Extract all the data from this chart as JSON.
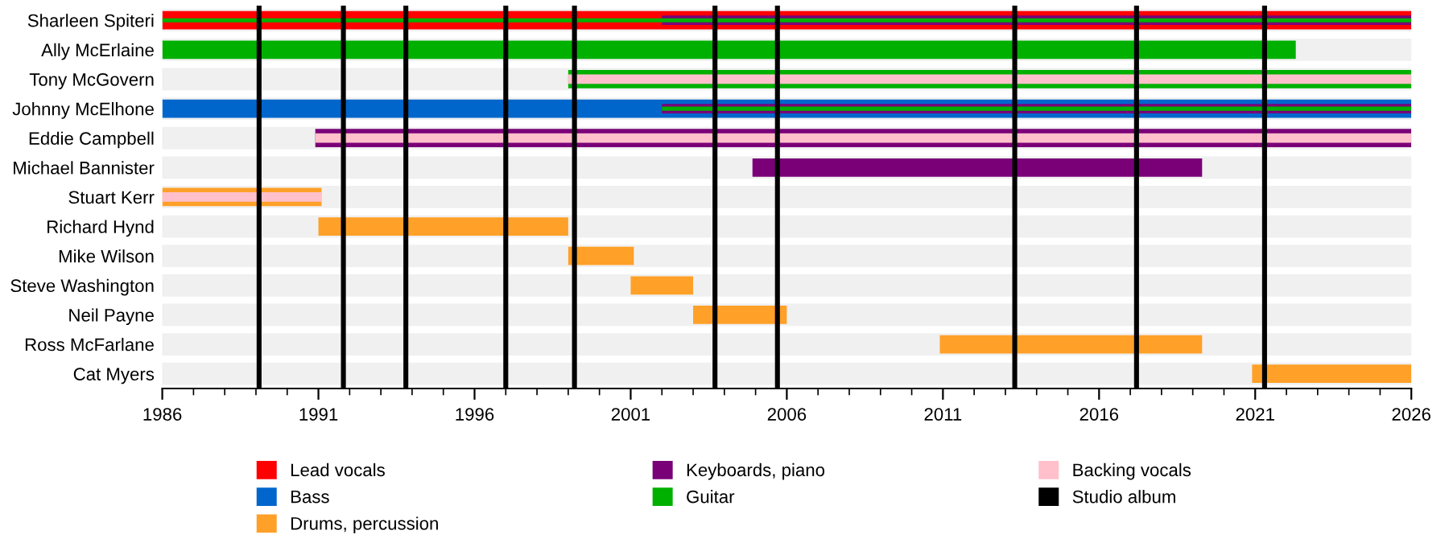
{
  "chart_data": {
    "type": "bar",
    "orientation": "horizontal",
    "categories": [
      "Sharleen Spiteri",
      "Ally McErlaine",
      "Tony McGovern",
      "Johnny McElhone",
      "Eddie Campbell",
      "Michael Bannister",
      "Stuart Kerr",
      "Richard Hynd",
      "Mike Wilson",
      "Steve Washington",
      "Neil Payne",
      "Ross McFarlane",
      "Cat Myers"
    ],
    "series": [
      {
        "name": "Lead vocals",
        "color": "#ff0000",
        "base": [
          1986,
          null,
          null,
          null,
          null,
          null,
          null,
          null,
          null,
          null,
          null,
          null,
          null
        ],
        "values": [
          40,
          null,
          null,
          null,
          null,
          null,
          null,
          null,
          null,
          null,
          null,
          null,
          null
        ]
      },
      {
        "name": "Bass",
        "color": "#0066cc",
        "base": [
          null,
          null,
          null,
          1986,
          null,
          null,
          null,
          null,
          null,
          null,
          null,
          null,
          null
        ],
        "values": [
          null,
          null,
          null,
          40,
          null,
          null,
          null,
          null,
          null,
          null,
          null,
          null,
          null
        ]
      },
      {
        "name": "Drums, percussion",
        "color": "#ffa028",
        "base": [
          null,
          null,
          null,
          null,
          null,
          null,
          1986,
          1991,
          1999,
          2001,
          2003,
          2010.9,
          2020.9
        ],
        "values": [
          null,
          null,
          null,
          null,
          null,
          null,
          5.1,
          8,
          2.1,
          2,
          3,
          8.4,
          5.1
        ]
      },
      {
        "name": "Keyboards, piano",
        "color": "#7a0078",
        "base": [
          2002,
          null,
          null,
          2002,
          1990.9,
          2004.9,
          null,
          null,
          null,
          null,
          null,
          null,
          null
        ],
        "values": [
          24,
          null,
          null,
          24,
          35.1,
          14.4,
          null,
          null,
          null,
          null,
          null,
          null,
          null
        ]
      },
      {
        "name": "Guitar",
        "color": "#00b000",
        "base": [
          1986,
          1986,
          1999,
          2002,
          null,
          null,
          null,
          null,
          null,
          null,
          null,
          null,
          null
        ],
        "values": [
          40,
          36.3,
          27,
          24,
          null,
          null,
          null,
          null,
          null,
          null,
          null,
          null,
          null
        ]
      },
      {
        "name": "Backing vocals",
        "color": "#ffc0cb",
        "base": [
          null,
          null,
          1999,
          null,
          1990.9,
          null,
          1986,
          null,
          null,
          null,
          null,
          null,
          null
        ],
        "values": [
          null,
          null,
          27,
          null,
          35.1,
          null,
          5.1,
          null,
          null,
          null,
          null,
          null,
          null
        ]
      }
    ],
    "ref_lines": [
      {
        "axis": "x",
        "value": 1989.1,
        "label": "Studio album",
        "color": "#000000"
      },
      {
        "axis": "x",
        "value": 1991.8,
        "color": "#000000"
      },
      {
        "axis": "x",
        "value": 1993.8,
        "color": "#000000"
      },
      {
        "axis": "x",
        "value": 1997.0,
        "color": "#000000"
      },
      {
        "axis": "x",
        "value": 1999.2,
        "color": "#000000"
      },
      {
        "axis": "x",
        "value": 2003.7,
        "color": "#000000"
      },
      {
        "axis": "x",
        "value": 2005.7,
        "color": "#000000"
      },
      {
        "axis": "x",
        "value": 2013.3,
        "color": "#000000"
      },
      {
        "axis": "x",
        "value": 2017.2,
        "color": "#000000"
      },
      {
        "axis": "x",
        "value": 2021.3,
        "color": "#000000"
      }
    ],
    "xlim": [
      1986,
      2026
    ],
    "xticks": [
      1986,
      {
        "value": 1987,
        "label": null
      },
      {
        "value": 1988,
        "label": null
      },
      {
        "value": 1989,
        "label": null
      },
      {
        "value": 1990,
        "label": null
      },
      1991,
      {
        "value": 1992,
        "label": null
      },
      {
        "value": 1993,
        "label": null
      },
      {
        "value": 1994,
        "label": null
      },
      {
        "value": 1995,
        "label": null
      },
      1996,
      {
        "value": 1997,
        "label": null
      },
      {
        "value": 1998,
        "label": null
      },
      {
        "value": 1999,
        "label": null
      },
      {
        "value": 2000,
        "label": null
      },
      2001,
      {
        "value": 2002,
        "label": null
      },
      {
        "value": 2003,
        "label": null
      },
      {
        "value": 2004,
        "label": null
      },
      {
        "value": 2005,
        "label": null
      },
      2006,
      {
        "value": 2007,
        "label": null
      },
      {
        "value": 2008,
        "label": null
      },
      {
        "value": 2009,
        "label": null
      },
      {
        "value": 2010,
        "label": null
      },
      2011,
      {
        "value": 2012,
        "label": null
      },
      {
        "value": 2013,
        "label": null
      },
      {
        "value": 2014,
        "label": null
      },
      {
        "value": 2015,
        "label": null
      },
      2016,
      {
        "value": 2017,
        "label": null
      },
      {
        "value": 2018,
        "label": null
      },
      {
        "value": 2019,
        "label": null
      },
      {
        "value": 2020,
        "label": null
      },
      2021,
      {
        "value": 2022,
        "label": null
      },
      {
        "value": 2023,
        "label": null
      },
      {
        "value": 2024,
        "label": null
      },
      {
        "value": 2025,
        "label": null
      },
      2026
    ],
    "grid": "y",
    "legend": "bottom"
  }
}
